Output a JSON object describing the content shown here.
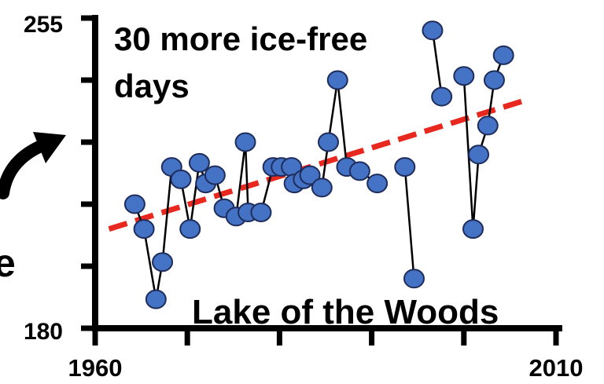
{
  "chart_data": {
    "type": "scatter",
    "title": "",
    "xlabel": "",
    "ylabel": "",
    "xlim": [
      1960,
      2010
    ],
    "ylim": [
      180,
      255
    ],
    "x_tick_labels": [
      "1960",
      "2010"
    ],
    "y_tick_labels": [
      "180",
      "255"
    ],
    "annotations": {
      "headline": [
        "30 more ice-free",
        "days"
      ],
      "lake": "Lake of the Woods",
      "cut_off_letter": "e"
    },
    "series": [
      {
        "style": "markers-connected",
        "color": "#4472c4",
        "segments": [
          [
            {
              "x": 1964.3,
              "y": 210
            },
            {
              "x": 1965.3,
              "y": 204
            },
            {
              "x": 1966.6,
              "y": 187
            },
            {
              "x": 1967.3,
              "y": 196
            },
            {
              "x": 1968.3,
              "y": 219
            },
            {
              "x": 1969.3,
              "y": 216
            },
            {
              "x": 1970.3,
              "y": 204
            },
            {
              "x": 1971.3,
              "y": 220
            },
            {
              "x": 1972.0,
              "y": 215
            },
            {
              "x": 1973.0,
              "y": 217
            },
            {
              "x": 1974.0,
              "y": 209
            },
            {
              "x": 1975.3,
              "y": 207
            },
            {
              "x": 1976.3,
              "y": 225
            },
            {
              "x": 1976.6,
              "y": 208
            },
            {
              "x": 1978.0,
              "y": 208
            },
            {
              "x": 1979.3,
              "y": 219
            },
            {
              "x": 1980.2,
              "y": 219
            },
            {
              "x": 1981.3,
              "y": 219
            },
            {
              "x": 1981.6,
              "y": 215
            },
            {
              "x": 1982.6,
              "y": 216
            },
            {
              "x": 1983.3,
              "y": 217
            },
            {
              "x": 1984.6,
              "y": 214
            },
            {
              "x": 1985.3,
              "y": 225
            },
            {
              "x": 1986.3,
              "y": 240
            },
            {
              "x": 1987.3,
              "y": 219
            }
          ],
          [
            {
              "x": 1988.7,
              "y": 218
            },
            {
              "x": 1990.6,
              "y": 215
            }
          ],
          [
            {
              "x": 1993.6,
              "y": 219
            },
            {
              "x": 1994.6,
              "y": 192
            }
          ],
          [
            {
              "x": 1996.6,
              "y": 252
            },
            {
              "x": 1997.6,
              "y": 236
            }
          ],
          [
            {
              "x": 2000.0,
              "y": 241
            },
            {
              "x": 2001.0,
              "y": 204
            },
            {
              "x": 2001.6,
              "y": 222
            },
            {
              "x": 2002.6,
              "y": 229
            },
            {
              "x": 2003.3,
              "y": 240
            },
            {
              "x": 2004.3,
              "y": 246
            }
          ]
        ]
      },
      {
        "style": "dashed-trend-line",
        "color": "#e8281e",
        "points": [
          {
            "x": 1961.5,
            "y": 204
          },
          {
            "x": 2006.5,
            "y": 235
          }
        ]
      }
    ],
    "grid": false,
    "legend": "none"
  }
}
